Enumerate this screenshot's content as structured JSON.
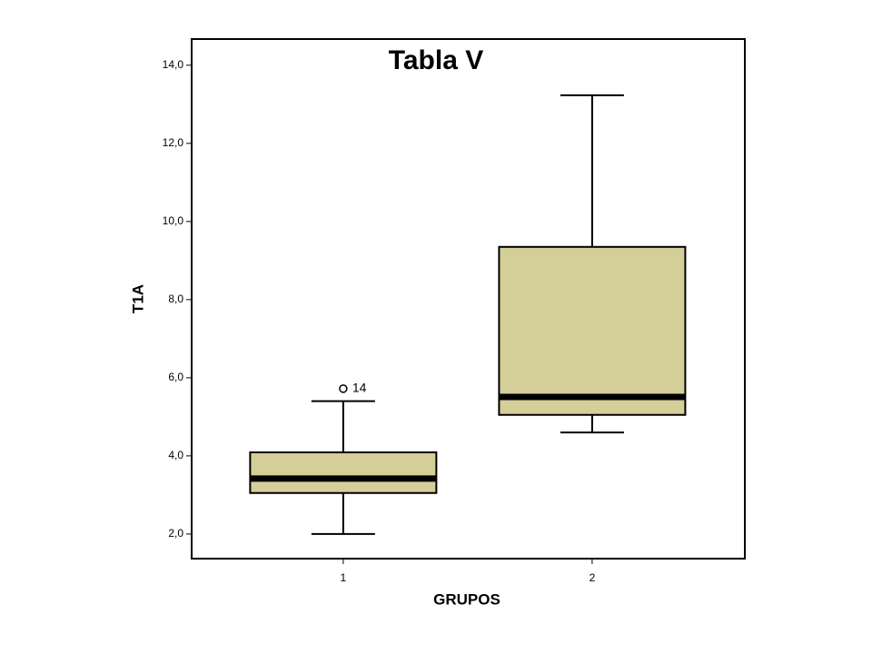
{
  "chart_data": {
    "type": "box",
    "title": "Tabla V",
    "x_label": "GRUPOS",
    "y_label": "T1A",
    "categories": [
      "1",
      "2"
    ],
    "color": "#d4ce98",
    "boxes": [
      {
        "min": 2.0,
        "q1": 3.05,
        "median": 3.42,
        "q3": 4.09,
        "max": 5.4,
        "outliers": [
          {
            "value": 5.72,
            "label": "14"
          }
        ]
      },
      {
        "min": 4.6,
        "q1": 5.05,
        "median": 5.51,
        "q3": 9.35,
        "max": 13.23,
        "outliers": []
      }
    ],
    "ylim": [
      1.37,
      14.67
    ],
    "yticks": [
      {
        "value": 2,
        "label": "2,0"
      },
      {
        "value": 4,
        "label": "4,0"
      },
      {
        "value": 6,
        "label": "6,0"
      },
      {
        "value": 8,
        "label": "8,0"
      },
      {
        "value": 10,
        "label": "10,0"
      },
      {
        "value": 12,
        "label": "12,0"
      },
      {
        "value": 14,
        "label": "14,0"
      }
    ]
  }
}
